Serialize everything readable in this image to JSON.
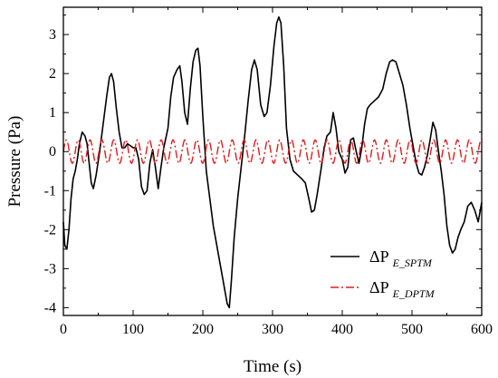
{
  "chart_data": {
    "type": "line",
    "title": "",
    "xlabel": "Time (s)",
    "ylabel": "Pressure (Pa)",
    "xlim": [
      0,
      600
    ],
    "ylim": [
      -4.2,
      3.7
    ],
    "x_ticks": [
      0,
      100,
      200,
      300,
      400,
      500,
      600
    ],
    "y_ticks": [
      -4,
      -3,
      -2,
      -1,
      0,
      1,
      2,
      3
    ],
    "grid": false,
    "legend_position": "bottom-right",
    "series": [
      {
        "name_main": "ΔP",
        "name_sub": "E_SPTM",
        "color": "#000000",
        "style": "solid",
        "points": [
          [
            0,
            -1.8
          ],
          [
            2,
            -2.4
          ],
          [
            5,
            -2.5
          ],
          [
            8,
            -2.0
          ],
          [
            11,
            -1.2
          ],
          [
            14,
            -0.7
          ],
          [
            17,
            -0.5
          ],
          [
            20,
            -0.2
          ],
          [
            23,
            0.2
          ],
          [
            27,
            0.5
          ],
          [
            31,
            0.4
          ],
          [
            34,
            0.2
          ],
          [
            37,
            -0.3
          ],
          [
            40,
            -0.8
          ],
          [
            43,
            -0.95
          ],
          [
            47,
            -0.6
          ],
          [
            52,
            0.0
          ],
          [
            57,
            0.7
          ],
          [
            62,
            1.4
          ],
          [
            66,
            1.9
          ],
          [
            69,
            2.0
          ],
          [
            72,
            1.8
          ],
          [
            76,
            1.1
          ],
          [
            80,
            0.5
          ],
          [
            84,
            0.1
          ],
          [
            88,
            0.1
          ],
          [
            92,
            0.2
          ],
          [
            96,
            0.15
          ],
          [
            100,
            0.1
          ],
          [
            104,
            0.1
          ],
          [
            108,
            -0.2
          ],
          [
            112,
            -0.9
          ],
          [
            116,
            -1.1
          ],
          [
            120,
            -1.0
          ],
          [
            124,
            -0.3
          ],
          [
            128,
            0.05
          ],
          [
            132,
            -0.4
          ],
          [
            136,
            -0.95
          ],
          [
            140,
            -0.4
          ],
          [
            144,
            0.1
          ],
          [
            150,
            0.6
          ],
          [
            154,
            1.4
          ],
          [
            158,
            1.9
          ],
          [
            163,
            2.1
          ],
          [
            167,
            2.2
          ],
          [
            170,
            1.8
          ],
          [
            174,
            1.0
          ],
          [
            178,
            0.7
          ],
          [
            182,
            1.6
          ],
          [
            186,
            2.3
          ],
          [
            190,
            2.6
          ],
          [
            193,
            2.65
          ],
          [
            196,
            2.2
          ],
          [
            200,
            0.9
          ],
          [
            205,
            -0.5
          ],
          [
            210,
            -1.2
          ],
          [
            215,
            -1.9
          ],
          [
            220,
            -2.4
          ],
          [
            225,
            -2.9
          ],
          [
            230,
            -3.4
          ],
          [
            235,
            -3.9
          ],
          [
            238,
            -4.0
          ],
          [
            241,
            -3.3
          ],
          [
            245,
            -2.2
          ],
          [
            250,
            -1.2
          ],
          [
            255,
            -0.4
          ],
          [
            260,
            0.4
          ],
          [
            265,
            1.3
          ],
          [
            270,
            2.1
          ],
          [
            274,
            2.35
          ],
          [
            278,
            2.1
          ],
          [
            283,
            1.2
          ],
          [
            288,
            0.9
          ],
          [
            292,
            1.0
          ],
          [
            297,
            1.7
          ],
          [
            302,
            2.7
          ],
          [
            306,
            3.3
          ],
          [
            309,
            3.45
          ],
          [
            312,
            3.3
          ],
          [
            316,
            2.2
          ],
          [
            320,
            0.6
          ],
          [
            325,
            -0.2
          ],
          [
            330,
            -0.5
          ],
          [
            336,
            -0.6
          ],
          [
            342,
            -0.7
          ],
          [
            347,
            -0.8
          ],
          [
            352,
            -1.2
          ],
          [
            356,
            -1.55
          ],
          [
            360,
            -1.5
          ],
          [
            364,
            -1.1
          ],
          [
            370,
            -0.4
          ],
          [
            374,
            0.1
          ],
          [
            378,
            0.4
          ],
          [
            383,
            0.5
          ],
          [
            387,
            1.0
          ],
          [
            391,
            0.6
          ],
          [
            395,
            0.0
          ],
          [
            400,
            -0.2
          ],
          [
            404,
            -0.55
          ],
          [
            408,
            -0.4
          ],
          [
            412,
            0.3
          ],
          [
            416,
            0.35
          ],
          [
            420,
            0.0
          ],
          [
            424,
            -0.3
          ],
          [
            428,
            0.1
          ],
          [
            432,
            0.7
          ],
          [
            436,
            1.1
          ],
          [
            440,
            1.2
          ],
          [
            446,
            1.3
          ],
          [
            452,
            1.4
          ],
          [
            458,
            1.6
          ],
          [
            463,
            2.0
          ],
          [
            468,
            2.3
          ],
          [
            472,
            2.35
          ],
          [
            477,
            2.3
          ],
          [
            482,
            2.0
          ],
          [
            487,
            1.7
          ],
          [
            492,
            1.2
          ],
          [
            497,
            0.6
          ],
          [
            502,
            0.1
          ],
          [
            506,
            -0.3
          ],
          [
            510,
            -0.55
          ],
          [
            514,
            -0.6
          ],
          [
            518,
            -0.4
          ],
          [
            522,
            -0.1
          ],
          [
            526,
            0.3
          ],
          [
            530,
            0.75
          ],
          [
            534,
            0.55
          ],
          [
            538,
            0.0
          ],
          [
            542,
            -0.5
          ],
          [
            546,
            -1.1
          ],
          [
            550,
            -1.9
          ],
          [
            554,
            -2.4
          ],
          [
            558,
            -2.6
          ],
          [
            562,
            -2.5
          ],
          [
            566,
            -2.2
          ],
          [
            570,
            -2.0
          ],
          [
            575,
            -1.8
          ],
          [
            580,
            -1.4
          ],
          [
            585,
            -1.3
          ],
          [
            590,
            -1.5
          ],
          [
            595,
            -1.8
          ],
          [
            600,
            -1.3
          ]
        ]
      },
      {
        "name_main": "ΔP",
        "name_sub": "E_DPTM",
        "color": "#e31a1c",
        "style": "dashdot",
        "model": {
          "offset": 0.0,
          "amplitude": 0.3,
          "period": 17
        }
      }
    ]
  }
}
